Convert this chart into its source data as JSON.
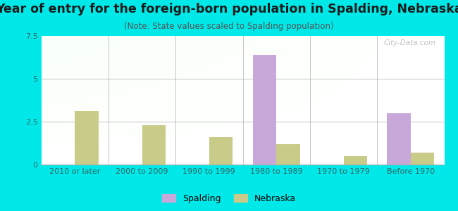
{
  "title": "Year of entry for the foreign-born population in Spalding, Nebraska",
  "subtitle": "(Note: State values scaled to Spalding population)",
  "categories": [
    "2010 or later",
    "2000 to 2009",
    "1990 to 1999",
    "1980 to 1989",
    "1970 to 1979",
    "Before 1970"
  ],
  "spalding_values": [
    0,
    0,
    0,
    6.4,
    0,
    3.0
  ],
  "nebraska_values": [
    3.1,
    2.3,
    1.6,
    1.2,
    0.5,
    0.7
  ],
  "spalding_color": "#c8a8d8",
  "nebraska_color": "#c8cc88",
  "ylim": [
    0,
    7.5
  ],
  "yticks": [
    0,
    2.5,
    5,
    7.5
  ],
  "bar_width": 0.35,
  "bg_color": "#00e8e8",
  "title_color": "#1a1a1a",
  "subtitle_color": "#555555",
  "title_fontsize": 12.5,
  "subtitle_fontsize": 8.5,
  "tick_label_fontsize": 8,
  "legend_fontsize": 9,
  "axis_label_color": "#336666"
}
